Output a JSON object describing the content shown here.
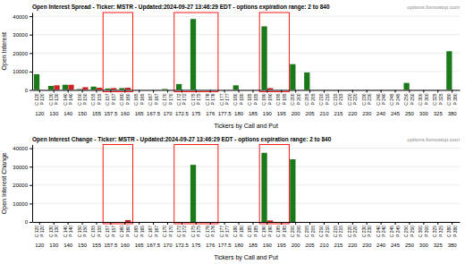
{
  "chart_data": [
    {
      "type": "bar",
      "title": "Open Interest Spread - Ticker: MSTR - Updated:2024-09-27 13:46:29 EDT - options expiration range: 2 to 840",
      "annotations": [
        "options.fomostop.com"
      ],
      "x_label": "Tickers by Call and Put",
      "y_label": "Open Interest",
      "categories": [
        "120",
        "130",
        "140",
        "150",
        "155",
        "157.5",
        "160",
        "165",
        "167.5",
        "170",
        "172.5",
        "175",
        "176",
        "177.5",
        "180",
        "185",
        "190",
        "195",
        "200",
        "205",
        "210",
        "215",
        "220",
        "230",
        "240",
        "245",
        "250",
        "300",
        "325",
        "380"
      ],
      "series": [
        {
          "color": "#1a7a1a",
          "values": [
            8500,
            2200,
            2800,
            500,
            1800,
            800,
            1000,
            0,
            0,
            500,
            3200,
            38500,
            0,
            0,
            2500,
            0,
            34500,
            0,
            14000,
            9500,
            0,
            0,
            0,
            0,
            0,
            0,
            3800,
            0,
            0,
            21000
          ],
          "bar_labels": [
            "C 120",
            "C 130",
            "C 140",
            "C 150",
            "C 155",
            "C 157",
            "C 160",
            "C 165",
            "C 167",
            "C 170",
            "C 172",
            "C 175",
            "C 176",
            "C 177",
            "C 180",
            "C 185",
            "C 190",
            "C 195",
            "C 200",
            "C 205",
            "C 210",
            "C 215",
            "C 220",
            "C 230",
            "C 240",
            "C 245",
            "C 250",
            "C 300",
            "C 325",
            "C 380"
          ]
        },
        {
          "color": "#cc2222",
          "values": [
            0,
            2500,
            2800,
            1500,
            1200,
            1000,
            1200,
            0,
            0,
            0,
            0,
            0,
            0,
            0,
            0,
            0,
            1000,
            0,
            0,
            0,
            0,
            0,
            0,
            0,
            0,
            0,
            0,
            0,
            0,
            0
          ],
          "bar_labels": [
            "P 120",
            "P 130",
            "P 140",
            "P 150",
            "P 155",
            "P 157",
            "P 160",
            "P 165",
            "P 167",
            "P 170",
            "P 172",
            "P 175",
            "P 176",
            "P 177",
            "P 180",
            "P 185",
            "P 190",
            "P 195",
            "P 200",
            "P 205",
            "P 210",
            "P 215",
            "P 220",
            "P 230",
            "P 240",
            "P 245",
            "P 250",
            "P 300",
            "P 325",
            "P 380"
          ]
        }
      ],
      "highlight_groups": [
        [
          "157.5",
          "160"
        ],
        [
          "172.5",
          "175",
          "176"
        ],
        [
          "190",
          "195"
        ]
      ],
      "ylim": [
        0,
        42000
      ],
      "yticks": [
        0,
        10000,
        20000,
        30000,
        40000
      ],
      "grid": true
    },
    {
      "type": "bar",
      "title": "Open Interest Change - Ticker: MSTR - Updated:2024-09-27 13:46:29 EDT - options expiration range: 2 to 840",
      "annotations": [
        "options.fomostop.com"
      ],
      "x_label": "Tickers by Call and Put",
      "y_label": "Open Interest Change",
      "categories": [
        "120",
        "130",
        "140",
        "150",
        "155",
        "157.5",
        "160",
        "165",
        "167.5",
        "170",
        "172.5",
        "175",
        "176",
        "177.5",
        "180",
        "185",
        "190",
        "195",
        "200",
        "205",
        "210",
        "215",
        "220",
        "230",
        "240",
        "245",
        "250",
        "300",
        "325",
        "380"
      ],
      "series": [
        {
          "color": "#1a7a1a",
          "values": [
            0,
            0,
            0,
            0,
            0,
            0,
            0,
            0,
            0,
            0,
            0,
            31000,
            0,
            0,
            0,
            0,
            37500,
            0,
            34000,
            0,
            0,
            0,
            0,
            0,
            0,
            0,
            0,
            0,
            0,
            0
          ],
          "bar_labels": [
            "C 120",
            "C 130",
            "C 140",
            "C 150",
            "C 155",
            "C 157",
            "C 160",
            "C 165",
            "C 167",
            "C 170",
            "C 172",
            "C 175",
            "C 176",
            "C 177",
            "C 180",
            "C 185",
            "C 190",
            "C 195",
            "C 200",
            "C 205",
            "C 210",
            "C 215",
            "C 220",
            "C 230",
            "C 240",
            "C 245",
            "C 250",
            "C 300",
            "C 325",
            "C 380"
          ]
        },
        {
          "color": "#cc2222",
          "values": [
            0,
            0,
            0,
            0,
            0,
            0,
            1000,
            0,
            0,
            0,
            0,
            0,
            0,
            0,
            0,
            0,
            800,
            0,
            0,
            0,
            0,
            0,
            0,
            0,
            0,
            0,
            0,
            0,
            0,
            0
          ],
          "bar_labels": [
            "P 120",
            "P 130",
            "P 140",
            "P 150",
            "P 155",
            "P 157",
            "P 160",
            "P 165",
            "P 167",
            "P 170",
            "P 172",
            "P 175",
            "P 176",
            "P 177",
            "P 180",
            "P 185",
            "P 190",
            "P 195",
            "P 200",
            "P 205",
            "P 210",
            "P 215",
            "P 220",
            "P 230",
            "P 240",
            "P 245",
            "P 250",
            "P 300",
            "P 325",
            "P 380"
          ]
        }
      ],
      "highlight_groups": [
        [
          "157.5",
          "160"
        ],
        [
          "172.5",
          "175",
          "176"
        ],
        [
          "190",
          "195"
        ]
      ],
      "ylim": [
        0,
        42000
      ],
      "yticks": [
        0,
        10000,
        20000,
        30000,
        40000
      ],
      "grid": true
    }
  ]
}
